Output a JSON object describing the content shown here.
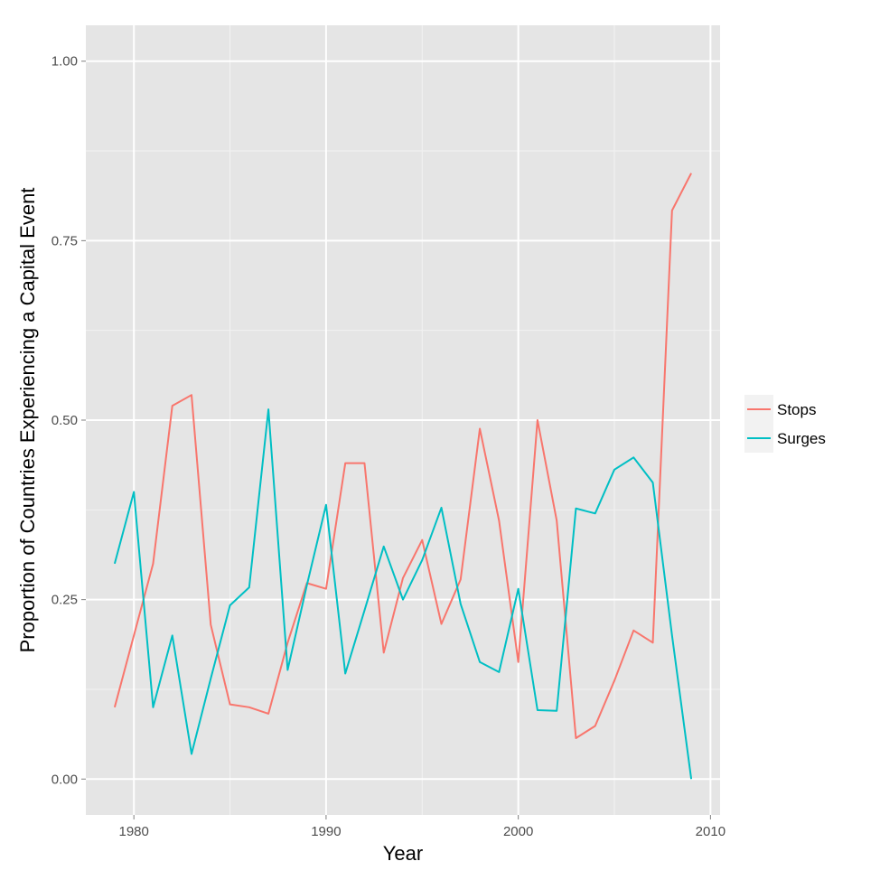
{
  "chart_data": {
    "type": "line",
    "title": "",
    "xlabel": "Year",
    "ylabel": "Proportion of Countries Experiencing a Capital Event",
    "xlim": [
      1977.5,
      2010.5
    ],
    "ylim": [
      -0.05,
      1.05
    ],
    "x_ticks": [
      1980,
      1990,
      2000,
      2010
    ],
    "x_tick_labels": [
      "1980",
      "1990",
      "2000",
      "2010"
    ],
    "y_ticks": [
      0,
      0.25,
      0.5,
      0.75,
      1.0
    ],
    "y_tick_labels": [
      "0.00",
      "0.25",
      "0.50",
      "0.75",
      "1.00"
    ],
    "grid": true,
    "legend_position": "right",
    "x": [
      1979,
      1980,
      1981,
      1982,
      1983,
      1984,
      1985,
      1986,
      1987,
      1988,
      1989,
      1990,
      1991,
      1992,
      1993,
      1994,
      1995,
      1996,
      1997,
      1998,
      1999,
      2000,
      2001,
      2002,
      2003,
      2004,
      2005,
      2006,
      2007,
      2008,
      2009
    ],
    "series": [
      {
        "name": "Stops",
        "color": "#F8766D",
        "values": [
          0.1,
          0.2,
          0.3,
          0.52,
          0.535,
          0.215,
          0.104,
          0.1,
          0.091,
          0.19,
          0.273,
          0.265,
          0.44,
          0.44,
          0.176,
          0.28,
          0.333,
          0.216,
          0.278,
          0.488,
          0.36,
          0.163,
          0.5,
          0.36,
          0.057,
          0.074,
          0.137,
          0.207,
          0.19,
          0.792,
          0.844
        ]
      },
      {
        "name": "Surges",
        "color": "#00BFC4",
        "values": [
          0.3,
          0.4,
          0.1,
          0.2,
          0.035,
          0.14,
          0.242,
          0.267,
          0.515,
          0.152,
          0.27,
          0.382,
          0.147,
          0.235,
          0.324,
          0.25,
          0.305,
          0.378,
          0.244,
          0.163,
          0.149,
          0.265,
          0.096,
          0.095,
          0.377,
          0.37,
          0.431,
          0.448,
          0.413,
          0.2,
          0.0
        ]
      }
    ]
  }
}
